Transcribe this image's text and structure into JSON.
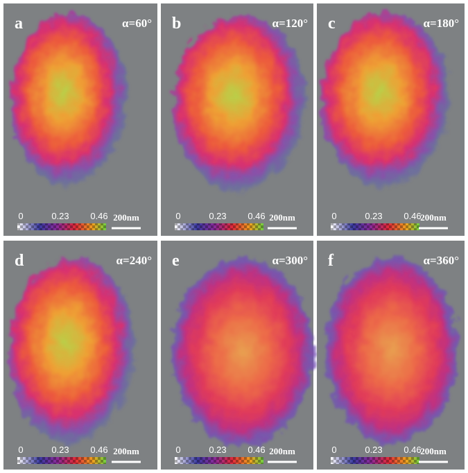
{
  "panels": [
    {
      "label": "a",
      "angle": "α=60°",
      "colorbar": [
        "0",
        "0.23",
        "0.46"
      ],
      "scale": "200nm"
    },
    {
      "label": "b",
      "angle": "α=120°",
      "colorbar": [
        "0",
        "0.23",
        "0.46"
      ],
      "scale": "200nm"
    },
    {
      "label": "c",
      "angle": "α=180°",
      "colorbar": [
        "0",
        "0.23",
        "0.46"
      ],
      "scale": "200nm"
    },
    {
      "label": "d",
      "angle": "α=240°",
      "colorbar": [
        "0",
        "0.23",
        "0.46"
      ],
      "scale": "200nm"
    },
    {
      "label": "e",
      "angle": "α=300°",
      "colorbar": [
        "0",
        "0.23",
        "0.46"
      ],
      "scale": "200nm"
    },
    {
      "label": "f",
      "angle": "α=360°",
      "colorbar": [
        "0",
        "0.23",
        "0.46"
      ],
      "scale": "200nm"
    }
  ]
}
